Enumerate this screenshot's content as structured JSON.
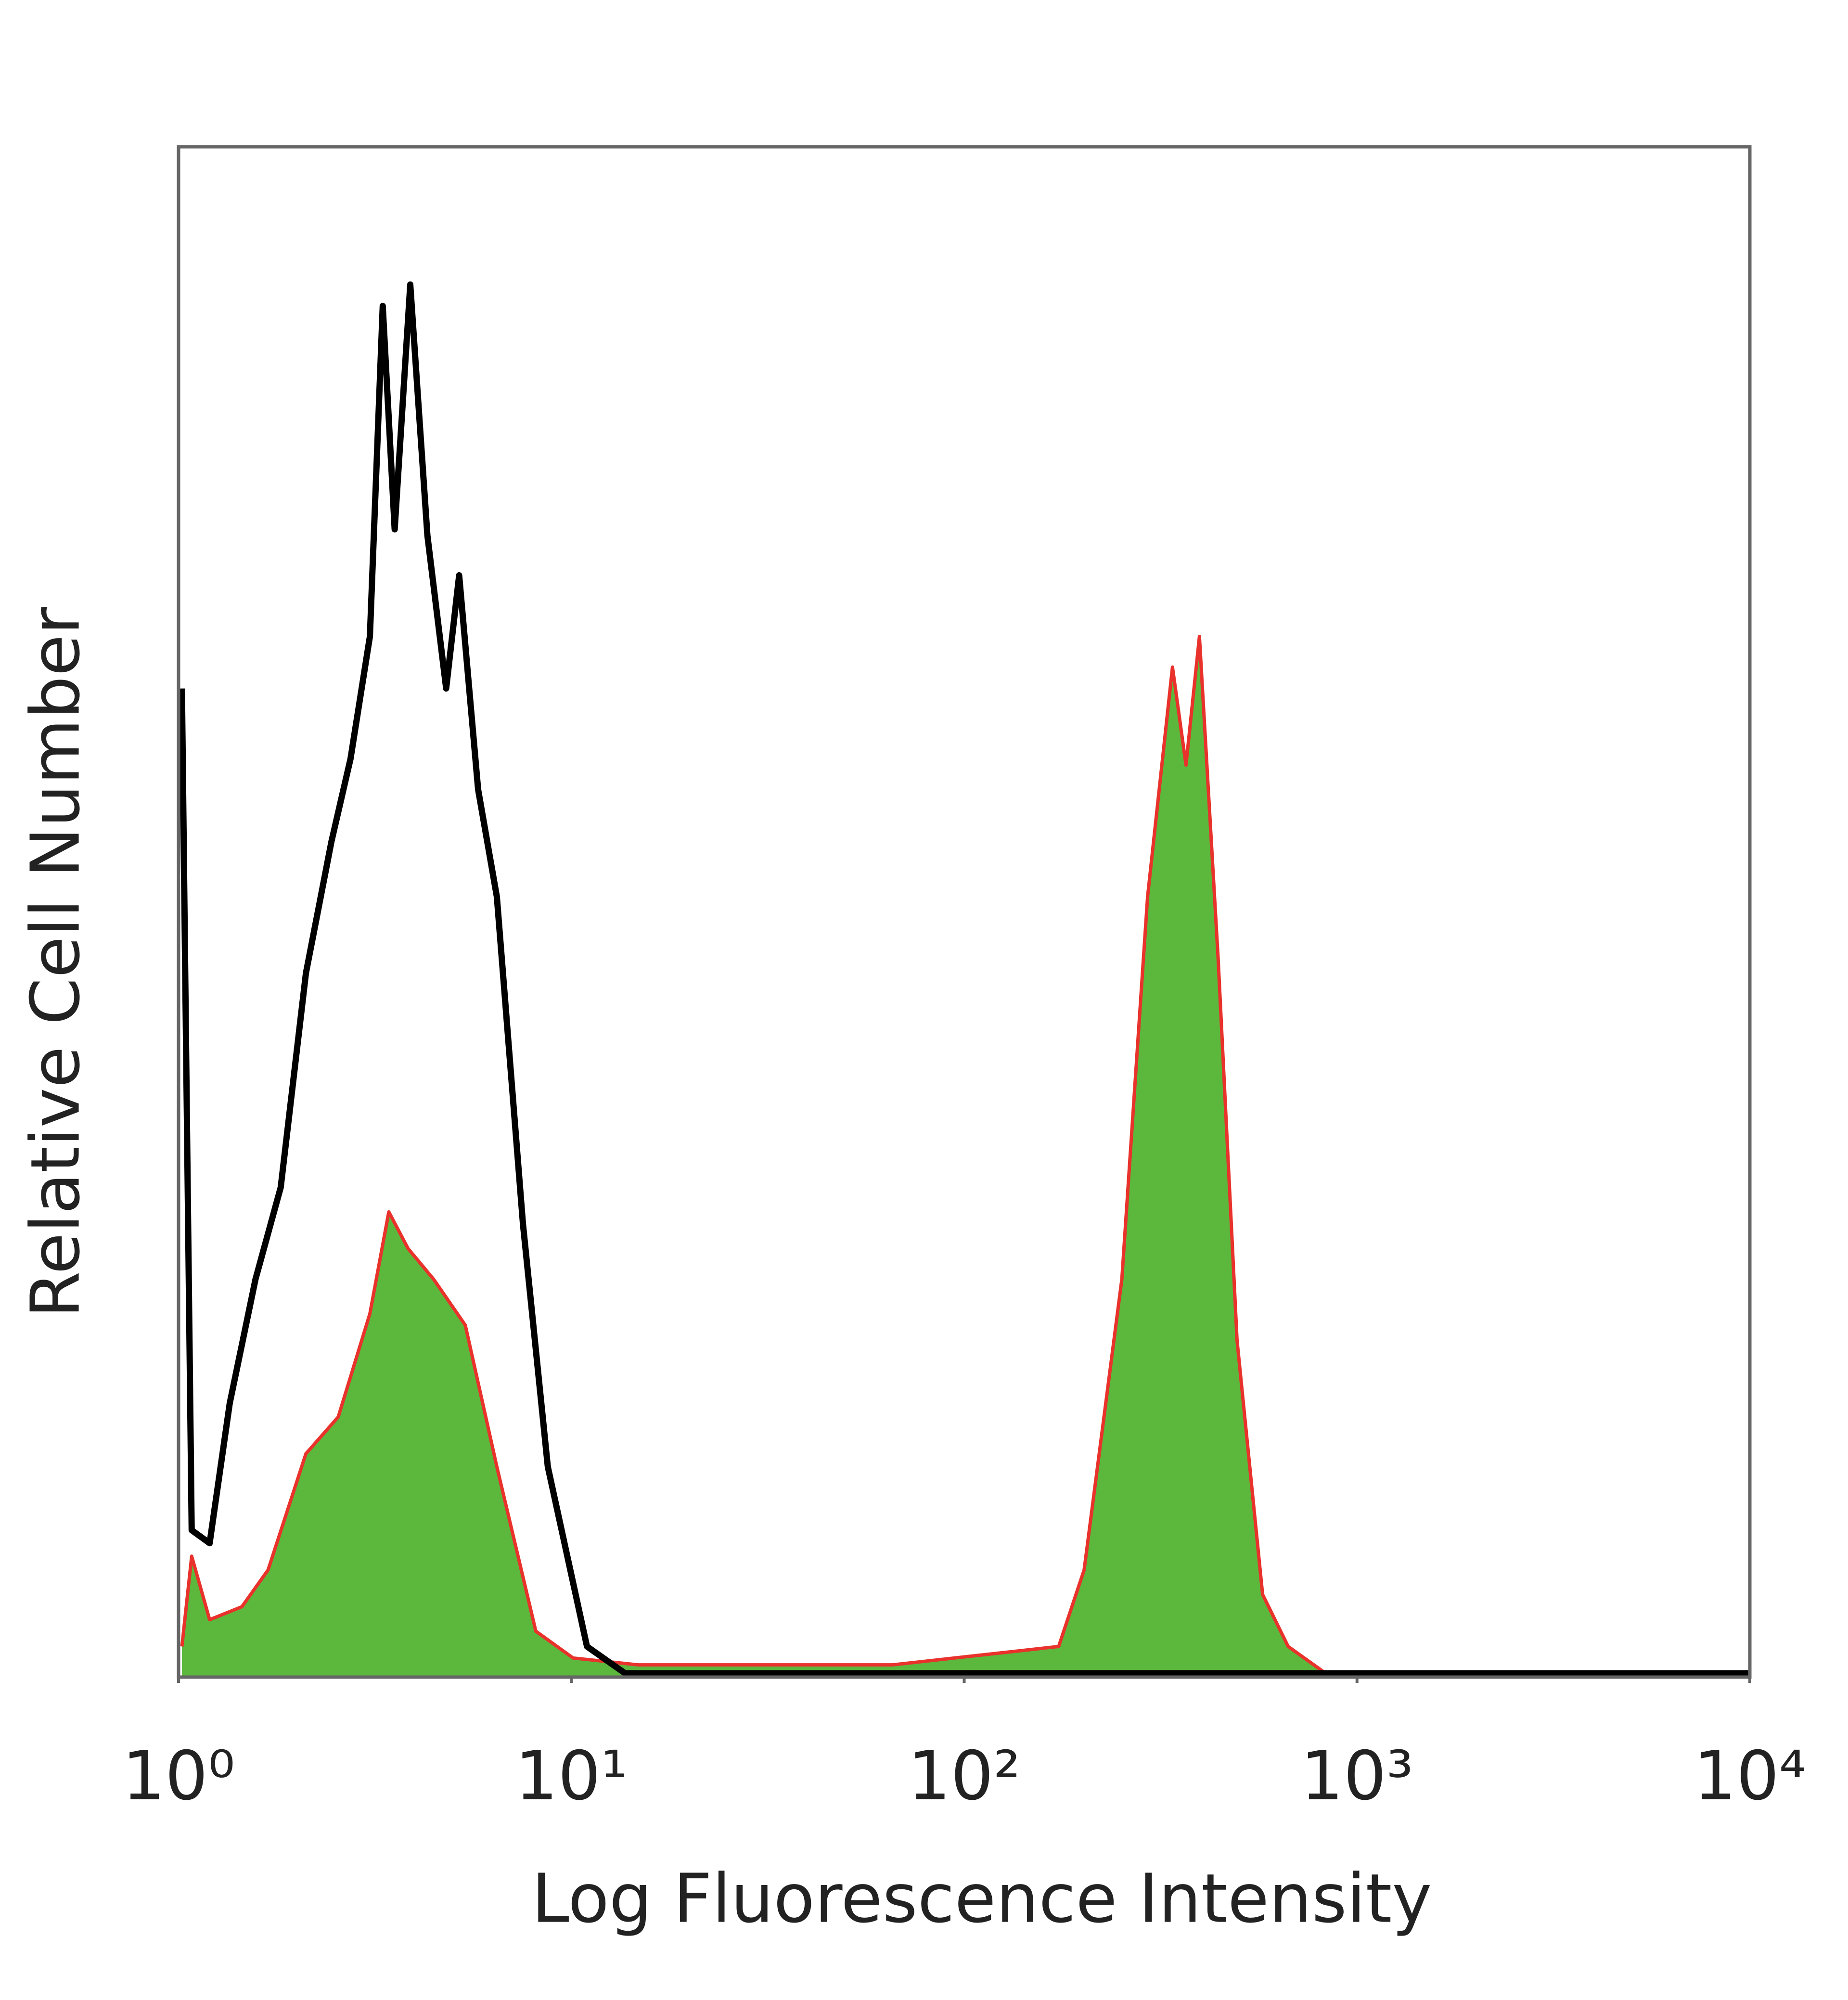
{
  "chart_data": {
    "type": "line",
    "x_label": "Log Fluorescence Intensity",
    "y_label": "Relative Cell Number",
    "xscale": "log",
    "xlim": [
      1,
      10000
    ],
    "ylim": [
      0,
      100
    ],
    "xticks": [
      {
        "value": 1,
        "label": "10⁰"
      },
      {
        "value": 10,
        "label": "10¹"
      },
      {
        "value": 100,
        "label": "10²"
      },
      {
        "value": 1000,
        "label": "10³"
      },
      {
        "value": 10000,
        "label": "10⁴"
      }
    ],
    "series": [
      {
        "color": "#e8322b",
        "fill": "#5cb83c",
        "x": [
          1.02,
          1.08,
          1.2,
          1.45,
          1.69,
          2.11,
          2.55,
          3.07,
          3.43,
          3.84,
          4.46,
          5.37,
          6.46,
          8.12,
          10.1,
          14.8,
          65.6,
          174,
          202,
          252,
          293,
          339,
          367,
          397,
          443,
          495,
          575,
          668,
          832,
          10000
        ],
        "values": [
          2,
          7.9,
          3.75,
          4.6,
          7,
          14.6,
          17,
          23.75,
          30.4,
          28,
          26,
          23,
          13.75,
          3,
          1.25,
          0.8,
          0.8,
          2,
          7,
          26,
          51,
          66,
          59.6,
          68,
          47,
          22,
          5.4,
          2,
          0.25,
          0.25
        ]
      },
      {
        "color": "#000000",
        "x": [
          1.02,
          1.08,
          1.2,
          1.35,
          1.57,
          1.82,
          2.11,
          2.45,
          2.74,
          3.07,
          3.31,
          3.55,
          3.89,
          4.3,
          4.8,
          5.18,
          5.79,
          6.46,
          7.53,
          8.71,
          10.96,
          13.7,
          31,
          10000
        ],
        "values": [
          64.6,
          9.6,
          8.75,
          17.9,
          26,
          32,
          46,
          54.6,
          60,
          68,
          89.6,
          75,
          91,
          74.6,
          64.6,
          72,
          58,
          51,
          29.6,
          13.75,
          2,
          0.25,
          0.25,
          0.25
        ]
      }
    ]
  }
}
